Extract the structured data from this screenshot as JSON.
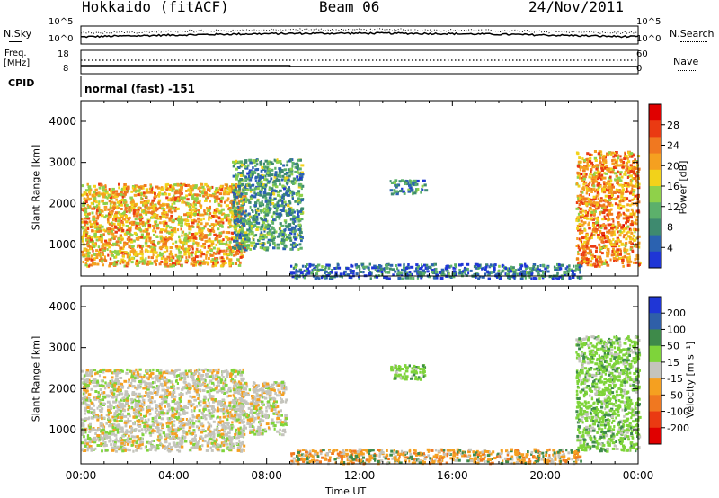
{
  "header": {
    "station": "Hokkaido (fitACF)",
    "beam": "Beam 06",
    "date": "24/Nov/2011"
  },
  "top_panels": {
    "noise_left_label": "N.Sky",
    "noise_right_label": "N.Search",
    "noise_ticks_left": [
      "10^5",
      "10^0"
    ],
    "noise_ticks_right": [
      "10^5",
      "10^0"
    ],
    "freq_label_line1": "Freq.",
    "freq_label_line2": "[MHz]",
    "freq_ticks": [
      "18",
      "8"
    ],
    "nave_label": "Nave",
    "nave_ticks": [
      "60",
      "0"
    ],
    "cpid_label": "CPID",
    "cpid_value": "normal (fast) -151"
  },
  "chart_data": [
    {
      "type": "heatmap",
      "title": "",
      "xlabel": "",
      "ylabel": "Slant Range [km]",
      "x_ticks": [
        "00:00",
        "04:00",
        "08:00",
        "12:00",
        "16:00",
        "20:00",
        "00:00"
      ],
      "y_ticks": [
        "1000",
        "2000",
        "3000",
        "4000"
      ],
      "ylim": [
        180,
        4600
      ],
      "colorbar": {
        "label": "Power [dB]",
        "ticks": [
          "4",
          "8",
          "12",
          "16",
          "20",
          "24",
          "28"
        ],
        "range": [
          0,
          32
        ],
        "colors": [
          "#1f36d6",
          "#2b62b0",
          "#3e8a6f",
          "#5cb06b",
          "#8fd14a",
          "#f2d21a",
          "#f5a020",
          "#f07820",
          "#ea3a12",
          "#e00000"
        ]
      },
      "regions": [
        {
          "name": "evening-west",
          "t_start": 0.0,
          "t_end": 7.0,
          "range_min": 500,
          "range_max": 2500,
          "level": 20
        },
        {
          "name": "arc-0800",
          "t_start": 6.5,
          "t_end": 9.5,
          "range_min": 900,
          "range_max": 3100,
          "level": 10
        },
        {
          "name": "patch-1300",
          "t_start": 13.3,
          "t_end": 14.8,
          "range_min": 2250,
          "range_max": 2600,
          "level": 8
        },
        {
          "name": "near-range-scatter",
          "t_start": 9.0,
          "t_end": 21.5,
          "range_min": 200,
          "range_max": 550,
          "level": 6
        },
        {
          "name": "morning-east",
          "t_start": 21.3,
          "t_end": 24.0,
          "range_min": 500,
          "range_max": 3300,
          "level": 22
        }
      ]
    },
    {
      "type": "heatmap",
      "title": "",
      "xlabel": "Time UT",
      "ylabel": "Slant Range [km]",
      "x_ticks": [
        "00:00",
        "04:00",
        "08:00",
        "12:00",
        "16:00",
        "20:00",
        "00:00"
      ],
      "y_ticks": [
        "1000",
        "2000",
        "3000",
        "4000"
      ],
      "ylim": [
        180,
        4600
      ],
      "colorbar": {
        "label": "Velocity [m s⁻¹]",
        "ticks": [
          "200",
          "100",
          "50",
          "15",
          "-15",
          "-50",
          "-100",
          "-200"
        ],
        "colors": [
          "#1f36d6",
          "#2f5fa8",
          "#3e8a4a",
          "#7ed43a",
          "#c4c4bc",
          "#f5a020",
          "#f07820",
          "#ea3a12",
          "#e00000"
        ]
      },
      "regions": [
        {
          "name": "evening-west",
          "t_start": 0.0,
          "t_end": 7.0,
          "range_min": 500,
          "range_max": 2500,
          "velocity_class": "-15..15"
        },
        {
          "name": "arc-0800",
          "t_start": 6.5,
          "t_end": 8.8,
          "range_min": 900,
          "range_max": 2200,
          "velocity_class": "-15..15"
        },
        {
          "name": "patch-1300",
          "t_start": 13.3,
          "t_end": 14.8,
          "range_min": 2250,
          "range_max": 2600,
          "velocity_class": "15..50"
        },
        {
          "name": "near-range-scatter",
          "t_start": 9.0,
          "t_end": 21.5,
          "range_min": 200,
          "range_max": 550,
          "velocity_class": "-50..-15"
        },
        {
          "name": "morning-east",
          "t_start": 21.3,
          "t_end": 24.0,
          "range_min": 500,
          "range_max": 3300,
          "velocity_class": "15..50"
        }
      ]
    }
  ]
}
